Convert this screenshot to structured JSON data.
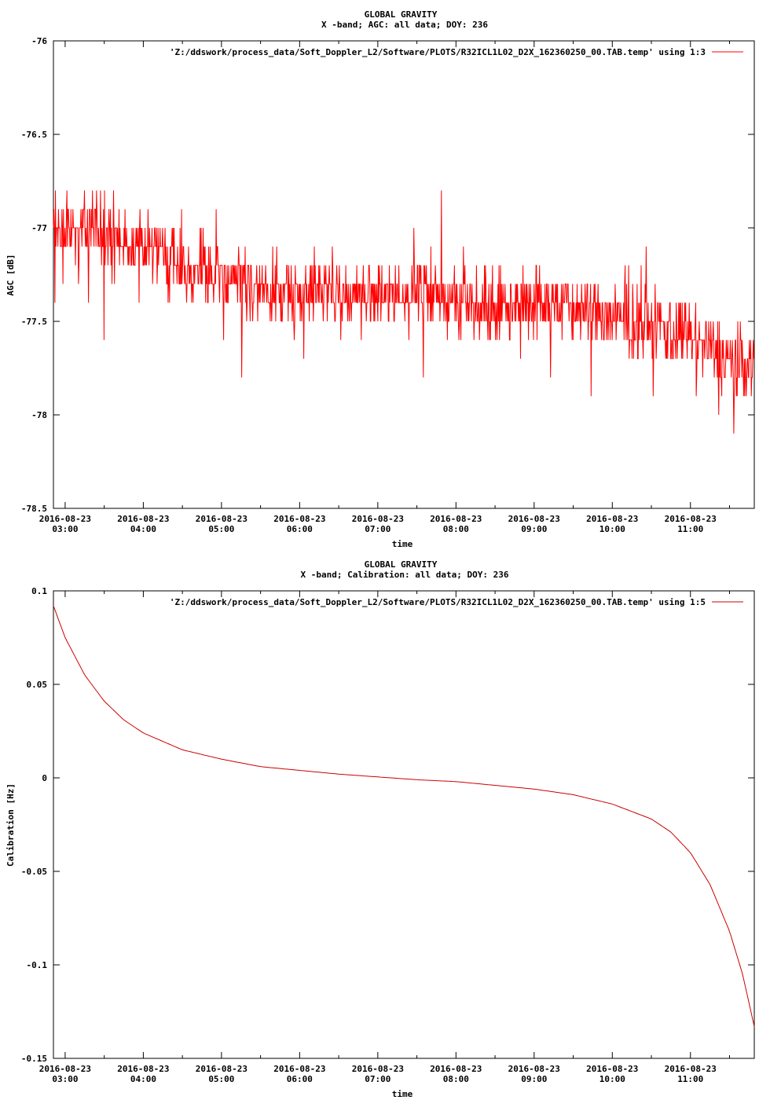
{
  "charts": [
    {
      "title_line1": "GLOBAL GRAVITY",
      "title_line2": "X -band; AGC: all data; DOY: 236",
      "legend": "'Z:/ddswork/process_data/Soft_Doppler_L2/Software/PLOTS/R32ICL1L02_D2X_162360250_00.TAB.temp' using 1:3",
      "ylabel": "AGC [dB]",
      "xlabel": "time"
    },
    {
      "title_line1": "GLOBAL GRAVITY",
      "title_line2": "X -band; Calibration: all data; DOY: 236",
      "legend": "'Z:/ddswork/process_data/Soft_Doppler_L2/Software/PLOTS/R32ICL1L02_D2X_162360250_00.TAB.temp' using 1:5",
      "ylabel": "Calibration [Hz]",
      "xlabel": "time"
    }
  ],
  "chart_data": [
    {
      "type": "line",
      "series": [
        {
          "color": "#ff0000",
          "x": [
            "02:51",
            "03:15",
            "03:45",
            "04:15",
            "04:45",
            "05:15",
            "05:45",
            "06:15",
            "06:45",
            "07:15",
            "07:45",
            "08:15",
            "08:45",
            "09:15",
            "09:45",
            "10:15",
            "10:45",
            "11:15",
            "11:45"
          ],
          "y": [
            -77.0,
            -77.0,
            -77.05,
            -77.15,
            -77.25,
            -77.3,
            -77.35,
            -77.35,
            -77.35,
            -77.35,
            -77.35,
            -77.4,
            -77.4,
            -77.4,
            -77.45,
            -77.5,
            -77.55,
            -77.65,
            -77.75
          ]
        }
      ],
      "x_ticks": [
        "2016-08-23\n03:00",
        "2016-08-23\n04:00",
        "2016-08-23\n05:00",
        "2016-08-23\n06:00",
        "2016-08-23\n07:00",
        "2016-08-23\n08:00",
        "2016-08-23\n09:00",
        "2016-08-23\n10:00",
        "2016-08-23\n11:00"
      ],
      "x_tick_date": "2016-08-23",
      "x_tick_times": [
        "03:00",
        "04:00",
        "05:00",
        "06:00",
        "07:00",
        "08:00",
        "09:00",
        "10:00",
        "11:00"
      ],
      "xlim": [
        "02:51",
        "11:49"
      ],
      "y_ticks": [
        "-76",
        "-76.5",
        "-77",
        "-77.5",
        "-78",
        "-78.5"
      ],
      "ylim": [
        -78.5,
        -76
      ],
      "grid": false,
      "legend_position": "top-right"
    },
    {
      "type": "line",
      "series": [
        {
          "color": "#cc0000",
          "x": [
            "02:51",
            "03:00",
            "03:15",
            "03:30",
            "03:45",
            "04:00",
            "04:30",
            "05:00",
            "05:30",
            "06:00",
            "06:30",
            "07:00",
            "07:30",
            "08:00",
            "08:30",
            "09:00",
            "09:30",
            "10:00",
            "10:30",
            "10:45",
            "11:00",
            "11:15",
            "11:30",
            "11:40",
            "11:49"
          ],
          "y": [
            0.092,
            0.075,
            0.055,
            0.041,
            0.031,
            0.024,
            0.015,
            0.01,
            0.006,
            0.004,
            0.002,
            0.0005,
            -0.001,
            -0.002,
            -0.004,
            -0.006,
            -0.009,
            -0.014,
            -0.022,
            -0.029,
            -0.04,
            -0.057,
            -0.082,
            -0.105,
            -0.133
          ]
        }
      ],
      "x_ticks": [
        "2016-08-23\n03:00",
        "2016-08-23\n04:00",
        "2016-08-23\n05:00",
        "2016-08-23\n06:00",
        "2016-08-23\n07:00",
        "2016-08-23\n08:00",
        "2016-08-23\n09:00",
        "2016-08-23\n10:00",
        "2016-08-23\n11:00"
      ],
      "x_tick_date": "2016-08-23",
      "x_tick_times": [
        "03:00",
        "04:00",
        "05:00",
        "06:00",
        "07:00",
        "08:00",
        "09:00",
        "10:00",
        "11:00"
      ],
      "xlim": [
        "02:51",
        "11:49"
      ],
      "y_ticks": [
        "0.1",
        "0.05",
        "0",
        "-0.05",
        "-0.1",
        "-0.15"
      ],
      "ylim": [
        -0.15,
        0.1
      ],
      "grid": false,
      "legend_position": "top-right"
    }
  ]
}
